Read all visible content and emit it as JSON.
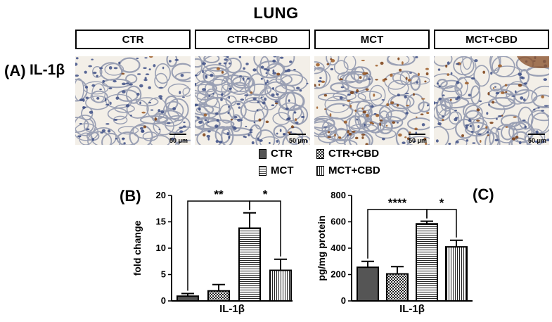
{
  "figure": {
    "title": "LUNG",
    "panel_a": "(A)",
    "panel_b": "(B)",
    "panel_c": "(C)",
    "row_label": "IL-1β",
    "groups": [
      "CTR",
      "CTR+CBD",
      "MCT",
      "MCT+CBD"
    ],
    "scale_bar": "50 μm"
  },
  "legend": {
    "items": [
      {
        "label": "CTR",
        "pattern": "solid-dark"
      },
      {
        "label": "CTR+CBD",
        "pattern": "checker"
      },
      {
        "label": "MCT",
        "pattern": "horizontal-lines"
      },
      {
        "label": "MCT+CBD",
        "pattern": "vertical-lines"
      }
    ]
  },
  "chart_data": [
    {
      "type": "bar",
      "panel": "(B)",
      "categories": [
        "CTR",
        "CTR+CBD",
        "MCT",
        "MCT+CBD"
      ],
      "values": [
        0.9,
        1.9,
        13.8,
        5.8
      ],
      "errors": [
        0.5,
        1.2,
        2.9,
        2.1
      ],
      "xlabel": "IL-1β",
      "ylabel": "fold change",
      "ylim": [
        0,
        20
      ],
      "yticks": [
        0,
        5,
        10,
        15,
        20
      ],
      "significance": [
        {
          "from": 0,
          "to": 2,
          "label": "**"
        },
        {
          "from": 2,
          "to": 3,
          "label": "*"
        }
      ]
    },
    {
      "type": "bar",
      "panel": "(C)",
      "categories": [
        "CTR",
        "CTR+CBD",
        "MCT",
        "MCT+CBD"
      ],
      "values": [
        255,
        205,
        585,
        410
      ],
      "errors": [
        45,
        55,
        20,
        50
      ],
      "xlabel": "IL-1β",
      "ylabel": "pg/mg protein",
      "ylim": [
        0,
        800
      ],
      "yticks": [
        0,
        200,
        400,
        600,
        800
      ],
      "significance": [
        {
          "from": 0,
          "to": 2,
          "label": "****"
        },
        {
          "from": 2,
          "to": 3,
          "label": "*"
        }
      ]
    }
  ]
}
